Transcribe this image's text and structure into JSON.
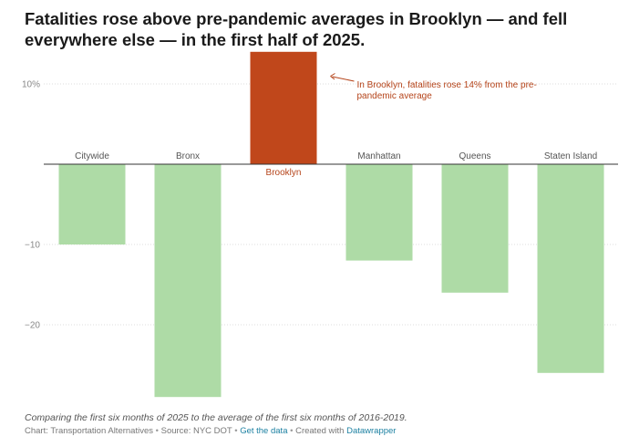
{
  "chart_data": {
    "type": "bar",
    "title": "Fatalities rose above pre-pandemic averages in Brooklyn — and fell everywhere else — in the first half of 2025.",
    "categories": [
      "Citywide",
      "Bronx",
      "Brooklyn",
      "Manhattan",
      "Queens",
      "Staten Island"
    ],
    "values": [
      -10,
      -29,
      14,
      -12,
      -16,
      -26
    ],
    "highlight": "Brooklyn",
    "y_ticks": [
      10,
      -10,
      -20
    ],
    "y_tick_labels": [
      "10%",
      "−10",
      "−20"
    ],
    "ylim": [
      -29.5,
      14
    ],
    "xlabel": "",
    "ylabel": "",
    "annotation": {
      "category": "Brooklyn",
      "lines": [
        "In Brooklyn, fatalities rose 14% from the pre-",
        "pandemic average"
      ]
    },
    "colors": {
      "positive_highlight": "#c0471b",
      "negative": "#aedba6",
      "axis_label": "#555555",
      "highlight_label": "#b5441a",
      "baseline": "#333333",
      "grid": "#dddddd"
    }
  },
  "description": "Comparing the first six months of 2025 to the average of the first six months of 2016-2019.",
  "footer": {
    "chart_credit": "Chart: Transportation Alternatives",
    "source": "Source: NYC DOT",
    "get_data": "Get the data",
    "created_with": "Created with",
    "tool": "Datawrapper"
  }
}
